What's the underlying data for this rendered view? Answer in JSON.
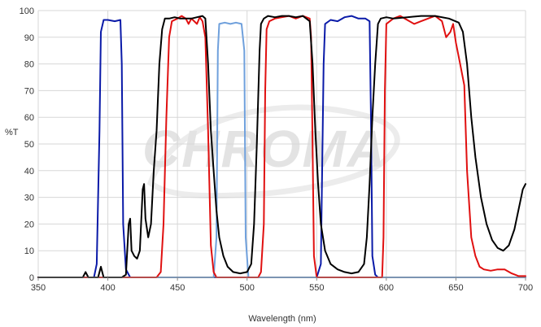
{
  "chart_data": {
    "type": "line",
    "xlabel": "Wavelength (nm)",
    "ylabel": "%T",
    "xlim": [
      350,
      700
    ],
    "ylim": [
      0,
      100
    ],
    "xticks": [
      350,
      400,
      450,
      500,
      550,
      600,
      650,
      700
    ],
    "yticks": [
      0,
      10,
      20,
      30,
      40,
      50,
      60,
      70,
      80,
      90,
      100
    ],
    "grid": true,
    "legend": "none",
    "watermark": "CHROMA",
    "series": [
      {
        "color": "#0a1aa8",
        "points": [
          [
            350,
            0
          ],
          [
            390,
            0
          ],
          [
            392,
            5
          ],
          [
            394,
            55
          ],
          [
            395,
            92
          ],
          [
            397,
            96.5
          ],
          [
            400,
            96.5
          ],
          [
            405,
            96
          ],
          [
            409,
            96.5
          ],
          [
            410,
            80
          ],
          [
            411,
            20
          ],
          [
            413,
            3
          ],
          [
            416,
            0
          ],
          [
            550,
            0
          ],
          [
            553,
            5
          ],
          [
            555,
            80
          ],
          [
            556,
            95
          ],
          [
            560,
            96.5
          ],
          [
            565,
            96
          ],
          [
            570,
            97.5
          ],
          [
            575,
            98
          ],
          [
            580,
            97
          ],
          [
            585,
            97
          ],
          [
            588,
            96
          ],
          [
            589,
            60
          ],
          [
            590,
            8
          ],
          [
            592,
            1
          ],
          [
            594,
            0
          ],
          [
            700,
            0
          ]
        ]
      },
      {
        "color": "#6fa0dc",
        "points": [
          [
            350,
            0
          ],
          [
            476,
            0
          ],
          [
            478,
            15
          ],
          [
            479,
            85
          ],
          [
            480,
            95
          ],
          [
            484,
            95.5
          ],
          [
            488,
            95
          ],
          [
            492,
            95.5
          ],
          [
            496,
            95
          ],
          [
            498,
            85
          ],
          [
            499,
            15
          ],
          [
            501,
            0
          ],
          [
            700,
            0
          ]
        ]
      },
      {
        "color": "#e01010",
        "points": [
          [
            350,
            0
          ],
          [
            435,
            0
          ],
          [
            438,
            2
          ],
          [
            440,
            20
          ],
          [
            442,
            60
          ],
          [
            444,
            90
          ],
          [
            446,
            96
          ],
          [
            450,
            97
          ],
          [
            453,
            98
          ],
          [
            456,
            97
          ],
          [
            458,
            95
          ],
          [
            460,
            97
          ],
          [
            462,
            96
          ],
          [
            464,
            95
          ],
          [
            466,
            97.5
          ],
          [
            468,
            96
          ],
          [
            470,
            90
          ],
          [
            472,
            55
          ],
          [
            474,
            12
          ],
          [
            476,
            2
          ],
          [
            478,
            0
          ],
          [
            508,
            0
          ],
          [
            510,
            2
          ],
          [
            512,
            20
          ],
          [
            513,
            70
          ],
          [
            514,
            93
          ],
          [
            516,
            96
          ],
          [
            520,
            97
          ],
          [
            525,
            97.5
          ],
          [
            530,
            98
          ],
          [
            535,
            97
          ],
          [
            540,
            98
          ],
          [
            545,
            97
          ],
          [
            546,
            90
          ],
          [
            547,
            50
          ],
          [
            548,
            8
          ],
          [
            550,
            0
          ],
          [
            597,
            0
          ],
          [
            598,
            15
          ],
          [
            599,
            70
          ],
          [
            600,
            95
          ],
          [
            605,
            97
          ],
          [
            610,
            98
          ],
          [
            615,
            96.5
          ],
          [
            620,
            95
          ],
          [
            625,
            96
          ],
          [
            630,
            97
          ],
          [
            635,
            98
          ],
          [
            640,
            96
          ],
          [
            643,
            90
          ],
          [
            646,
            92
          ],
          [
            648,
            95
          ],
          [
            650,
            88
          ],
          [
            653,
            80
          ],
          [
            656,
            72
          ],
          [
            658,
            40
          ],
          [
            661,
            15
          ],
          [
            664,
            8
          ],
          [
            667,
            4
          ],
          [
            670,
            3
          ],
          [
            675,
            2.5
          ],
          [
            680,
            3
          ],
          [
            685,
            3
          ],
          [
            690,
            1.5
          ],
          [
            695,
            0.5
          ],
          [
            700,
            0.5
          ]
        ]
      },
      {
        "color": "#000000",
        "points": [
          [
            350,
            0
          ],
          [
            382,
            0
          ],
          [
            384,
            2
          ],
          [
            386,
            0
          ],
          [
            393,
            0
          ],
          [
            395,
            4
          ],
          [
            397,
            0
          ],
          [
            410,
            0
          ],
          [
            413,
            1
          ],
          [
            415,
            20
          ],
          [
            416,
            22
          ],
          [
            417,
            10
          ],
          [
            419,
            8
          ],
          [
            421,
            7
          ],
          [
            423,
            10
          ],
          [
            425,
            33
          ],
          [
            426,
            35
          ],
          [
            427,
            22
          ],
          [
            429,
            15
          ],
          [
            431,
            20
          ],
          [
            433,
            40
          ],
          [
            435,
            55
          ],
          [
            437,
            80
          ],
          [
            439,
            93
          ],
          [
            441,
            97
          ],
          [
            444,
            97
          ],
          [
            448,
            97.5
          ],
          [
            452,
            97
          ],
          [
            456,
            97
          ],
          [
            460,
            97
          ],
          [
            464,
            97.5
          ],
          [
            468,
            98
          ],
          [
            470,
            97
          ],
          [
            472,
            80
          ],
          [
            474,
            55
          ],
          [
            476,
            40
          ],
          [
            478,
            25
          ],
          [
            480,
            15
          ],
          [
            483,
            8
          ],
          [
            486,
            4
          ],
          [
            490,
            2
          ],
          [
            495,
            1.5
          ],
          [
            500,
            2
          ],
          [
            503,
            5
          ],
          [
            505,
            20
          ],
          [
            507,
            50
          ],
          [
            509,
            85
          ],
          [
            510,
            95
          ],
          [
            512,
            97
          ],
          [
            515,
            98
          ],
          [
            520,
            97.5
          ],
          [
            525,
            98
          ],
          [
            530,
            98
          ],
          [
            535,
            97.5
          ],
          [
            540,
            98
          ],
          [
            545,
            96
          ],
          [
            547,
            80
          ],
          [
            549,
            55
          ],
          [
            551,
            35
          ],
          [
            553,
            20
          ],
          [
            556,
            10
          ],
          [
            560,
            5
          ],
          [
            565,
            3
          ],
          [
            570,
            2
          ],
          [
            575,
            1.5
          ],
          [
            580,
            2
          ],
          [
            584,
            5
          ],
          [
            586,
            15
          ],
          [
            588,
            35
          ],
          [
            590,
            60
          ],
          [
            592,
            80
          ],
          [
            594,
            95
          ],
          [
            596,
            97
          ],
          [
            600,
            97.5
          ],
          [
            605,
            97
          ],
          [
            615,
            97.5
          ],
          [
            625,
            98
          ],
          [
            635,
            98
          ],
          [
            645,
            97
          ],
          [
            652,
            95.5
          ],
          [
            655,
            92
          ],
          [
            658,
            80
          ],
          [
            661,
            60
          ],
          [
            664,
            45
          ],
          [
            668,
            30
          ],
          [
            672,
            20
          ],
          [
            676,
            14
          ],
          [
            680,
            11
          ],
          [
            684,
            10
          ],
          [
            688,
            12
          ],
          [
            692,
            18
          ],
          [
            696,
            28
          ],
          [
            698,
            33
          ],
          [
            700,
            35
          ]
        ]
      }
    ]
  }
}
